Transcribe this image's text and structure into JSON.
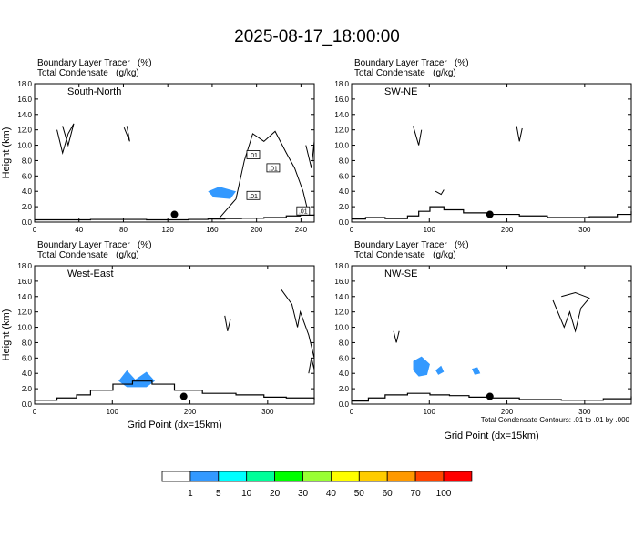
{
  "title": "2025-08-17_18:00:00",
  "footnote": "Total Condensate Contours: .01 to .01 by .000",
  "panel_titles": {
    "line1": "Boundary Layer Tracer   (%)",
    "line2": "Total Condensate   (g/kg)"
  },
  "colors": {
    "fill": "#3399ff",
    "marker": "#000000",
    "contour": "#000000"
  },
  "colorbar": {
    "colors": [
      "#ffffff",
      "#3399ff",
      "#00ffff",
      "#00ff99",
      "#00ff00",
      "#99ff33",
      "#ffff00",
      "#ffcc00",
      "#ff9900",
      "#ff4400",
      "#ff0000"
    ],
    "labels": [
      "1",
      "5",
      "10",
      "20",
      "30",
      "40",
      "50",
      "60",
      "70",
      "100"
    ]
  },
  "chart_data": [
    {
      "type": "area",
      "name": "South-North",
      "ylabel": "Height (km)",
      "xlabel": "",
      "xlim": [
        0,
        252
      ],
      "ylim": [
        0,
        18
      ],
      "xticks": [
        "0",
        "40",
        "80",
        "120",
        "160",
        "200",
        "240"
      ],
      "yticks": [
        "0.0",
        "2.0",
        "4.0",
        "6.0",
        "8.0",
        "10.0",
        "12.0",
        "14.0",
        "16.0",
        "18.0"
      ],
      "marker": {
        "x": 126,
        "y": 1.0
      },
      "contour_labels": [
        {
          "text": ".01",
          "x": 197,
          "y": 8.7
        },
        {
          "text": ".01",
          "x": 215,
          "y": 7.0
        },
        {
          "text": ".01",
          "x": 197,
          "y": 3.4
        },
        {
          "text": ".01",
          "x": 242,
          "y": 1.4
        }
      ]
    },
    {
      "type": "area",
      "name": "SW-NE",
      "ylabel": "",
      "xlabel": "",
      "xlim": [
        0,
        360
      ],
      "ylim": [
        0,
        18
      ],
      "xticks": [
        "0",
        "100",
        "200",
        "300"
      ],
      "yticks": [
        "0.0",
        "2.0",
        "4.0",
        "6.0",
        "8.0",
        "10.0",
        "12.0",
        "14.0",
        "16.0",
        "18.0"
      ],
      "marker": {
        "x": 178,
        "y": 1.0
      },
      "contour_labels": []
    },
    {
      "type": "area",
      "name": "West-East",
      "ylabel": "Height (km)",
      "xlabel": "Grid Point (dx=15km)",
      "xlim": [
        0,
        360
      ],
      "ylim": [
        0,
        18
      ],
      "xticks": [
        "0",
        "100",
        "200",
        "300"
      ],
      "yticks": [
        "0.0",
        "2.0",
        "4.0",
        "6.0",
        "8.0",
        "10.0",
        "12.0",
        "14.0",
        "16.0",
        "18.0"
      ],
      "marker": {
        "x": 192,
        "y": 1.0
      },
      "contour_labels": []
    },
    {
      "type": "area",
      "name": "NW-SE",
      "ylabel": "",
      "xlabel": "Grid Point (dx=15km)",
      "xlim": [
        0,
        360
      ],
      "ylim": [
        0,
        18
      ],
      "xticks": [
        "0",
        "100",
        "200",
        "300"
      ],
      "yticks": [
        "0.0",
        "2.0",
        "4.0",
        "6.0",
        "8.0",
        "10.0",
        "12.0",
        "14.0",
        "16.0",
        "18.0"
      ],
      "marker": {
        "x": 178,
        "y": 1.0
      },
      "contour_labels": []
    }
  ]
}
